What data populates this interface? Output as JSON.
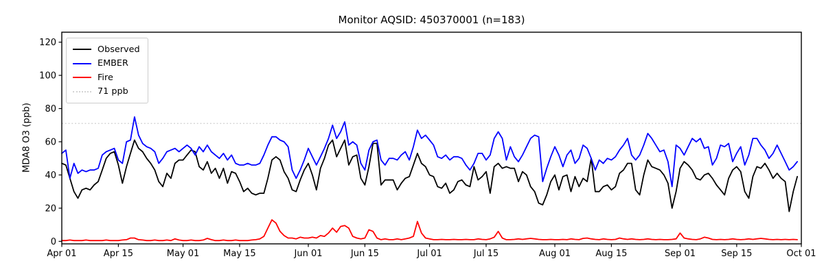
{
  "title": "Monitor AQSID: 450370001 (n=183)",
  "axes": {
    "ylabel": "MDA8 O3 (ppb)",
    "yticks": [
      0,
      20,
      40,
      60,
      80,
      100,
      120
    ],
    "xtick_labels": [
      "Apr 01",
      "Apr 15",
      "May 01",
      "May 15",
      "Jun 01",
      "Jun 15",
      "Jul 01",
      "Jul 15",
      "Aug 01",
      "Aug 15",
      "Sep 01",
      "Sep 15",
      "Oct 01"
    ],
    "xtick_days": [
      0,
      14,
      30,
      44,
      61,
      75,
      91,
      105,
      122,
      136,
      153,
      167,
      183
    ]
  },
  "legend": [
    {
      "label": "Observed",
      "color": "#000000",
      "style": "solid"
    },
    {
      "label": "EMBER",
      "color": "#0000ff",
      "style": "solid"
    },
    {
      "label": "Fire",
      "color": "#ff0000",
      "style": "solid"
    },
    {
      "label": "71 ppb",
      "color": "#d3d3d3",
      "style": "dotted"
    }
  ],
  "chart_data": {
    "type": "line",
    "title": "Monitor AQSID: 450370001 (n=183)",
    "xlabel": "",
    "ylabel": "MDA8 O3 (ppb)",
    "n_points": 183,
    "x_unit": "days from Apr 01, daily values Apr 01 - Sep 30",
    "xlim_days": [
      0,
      183
    ],
    "ylim": [
      -1.5,
      126
    ],
    "grid": false,
    "legend_position": "upper left",
    "threshold": {
      "value": 71,
      "label": "71 ppb",
      "color": "#d3d3d3",
      "style": "dotted"
    },
    "series": [
      {
        "name": "Observed",
        "color": "#000000",
        "values": [
          47,
          46,
          38,
          30,
          26,
          31,
          32,
          31,
          34,
          36,
          43,
          50,
          53,
          54,
          46,
          35,
          45,
          53,
          61,
          56,
          54,
          50,
          47,
          43,
          36,
          33,
          41,
          38,
          47,
          49,
          49,
          52,
          55,
          54,
          45,
          43,
          48,
          41,
          44,
          38,
          44,
          35,
          42,
          41,
          36,
          30,
          32,
          29,
          28,
          29,
          29,
          38,
          49,
          51,
          49,
          42,
          38,
          31,
          30,
          37,
          43,
          47,
          40,
          31,
          44,
          50,
          58,
          61,
          51,
          56,
          61,
          46,
          51,
          52,
          38,
          34,
          45,
          59,
          59,
          34,
          37,
          37,
          37,
          31,
          35,
          38,
          39,
          46,
          53,
          47,
          45,
          40,
          39,
          33,
          32,
          35,
          29,
          31,
          36,
          37,
          34,
          33,
          45,
          37,
          39,
          42,
          29,
          45,
          47,
          44,
          45,
          44,
          44,
          36,
          42,
          40,
          33,
          30,
          23,
          22,
          28,
          36,
          40,
          31,
          39,
          40,
          30,
          39,
          33,
          38,
          36,
          50,
          30,
          30,
          33,
          34,
          31,
          33,
          41,
          43,
          47,
          47,
          31,
          28,
          40,
          49,
          45,
          44,
          43,
          40,
          35,
          20,
          30,
          44,
          48,
          46,
          43,
          38,
          37,
          40,
          41,
          38,
          34,
          31,
          28,
          38,
          43,
          45,
          42,
          30,
          26,
          39,
          45,
          44,
          47,
          43,
          38,
          41,
          38,
          36,
          18,
          30,
          39
        ]
      },
      {
        "name": "EMBER",
        "color": "#0000ff",
        "values": [
          53,
          55,
          38,
          47,
          41,
          43,
          42,
          43,
          43,
          44,
          52,
          54,
          55,
          56,
          49,
          47,
          60,
          61,
          75,
          64,
          59,
          57,
          56,
          54,
          47,
          50,
          54,
          55,
          56,
          54,
          56,
          58,
          56,
          52,
          57,
          54,
          58,
          54,
          52,
          50,
          53,
          49,
          52,
          47,
          46,
          46,
          47,
          46,
          46,
          47,
          52,
          58,
          63,
          63,
          61,
          60,
          57,
          43,
          38,
          43,
          49,
          56,
          51,
          46,
          51,
          56,
          62,
          70,
          62,
          66,
          72,
          58,
          60,
          58,
          47,
          43,
          55,
          60,
          61,
          49,
          46,
          50,
          50,
          49,
          52,
          54,
          49,
          57,
          67,
          62,
          64,
          61,
          58,
          51,
          50,
          52,
          49,
          51,
          51,
          50,
          46,
          43,
          47,
          53,
          53,
          49,
          52,
          62,
          66,
          62,
          49,
          57,
          51,
          48,
          52,
          57,
          62,
          64,
          63,
          36,
          44,
          51,
          57,
          52,
          45,
          52,
          55,
          47,
          50,
          58,
          56,
          50,
          43,
          49,
          47,
          50,
          49,
          51,
          55,
          58,
          62,
          52,
          49,
          52,
          58,
          65,
          62,
          58,
          54,
          55,
          48,
          33,
          58,
          56,
          52,
          57,
          62,
          60,
          62,
          56,
          57,
          46,
          50,
          58,
          57,
          59,
          48,
          53,
          57,
          46,
          52,
          62,
          62,
          58,
          55,
          50,
          53,
          58,
          53,
          48,
          43,
          45,
          48
        ]
      },
      {
        "name": "Fire",
        "color": "#ff0000",
        "values": [
          0.5,
          0.5,
          0.8,
          0.5,
          0.5,
          0.5,
          0.8,
          0.5,
          0.5,
          0.5,
          0.5,
          0.8,
          0.5,
          0.5,
          0.5,
          0.8,
          1,
          2,
          2,
          1,
          0.8,
          0.5,
          0.5,
          0.8,
          0.5,
          0.5,
          0.8,
          0.5,
          1.5,
          0.8,
          0.5,
          0.5,
          0.8,
          0.5,
          0.5,
          0.8,
          1.8,
          1,
          0.5,
          0.5,
          0.8,
          0.5,
          0.5,
          0.8,
          0.5,
          0.5,
          0.5,
          0.8,
          1,
          1.5,
          3,
          8,
          13,
          11,
          6,
          3.5,
          2,
          2,
          1.5,
          2.5,
          2,
          2,
          2.5,
          2,
          3.5,
          3,
          5,
          8,
          5.5,
          9,
          9.5,
          8,
          3,
          2,
          1.5,
          2,
          7,
          6,
          2,
          1,
          1.5,
          1,
          1,
          1.5,
          1,
          1.5,
          2,
          3,
          12,
          5,
          2,
          1.5,
          1,
          1,
          1.2,
          1,
          1,
          1.2,
          1,
          1,
          1.2,
          1,
          1,
          1.5,
          1.2,
          1,
          1.5,
          2.5,
          6,
          2,
          1,
          1,
          1.2,
          1.5,
          1.2,
          1.5,
          1.8,
          1.5,
          1.2,
          1,
          1,
          1.2,
          1,
          1,
          1.2,
          1,
          1.5,
          1.2,
          1,
          1.8,
          2,
          1.5,
          1.2,
          1,
          1.5,
          1.2,
          1,
          1.2,
          2,
          1.5,
          1.2,
          1.5,
          1.2,
          1,
          1.2,
          1.5,
          1.2,
          1,
          1.2,
          1,
          1,
          1.2,
          1.5,
          5,
          2,
          1.5,
          1.2,
          1,
          1.5,
          2.5,
          2,
          1.2,
          1,
          1.2,
          1,
          1.2,
          1.5,
          1.2,
          1,
          1.2,
          1.5,
          1.2,
          1.5,
          1.8,
          1.5,
          1.2,
          1,
          1.2,
          1,
          1.2,
          1,
          1.2,
          1
        ]
      }
    ]
  }
}
